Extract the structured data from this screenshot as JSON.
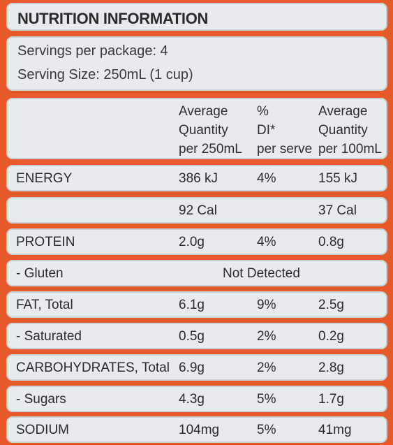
{
  "title": "NUTRITION INFORMATION",
  "servings": {
    "per_package": "Servings per package: 4",
    "serving_size": "Serving Size: 250mL (1 cup)"
  },
  "header": {
    "col1": [
      "Average",
      "Quantity",
      "per 250mL"
    ],
    "col2": [
      "%",
      "DI*",
      "per serve"
    ],
    "col3": [
      "Average",
      "Quantity",
      "per 100mL"
    ]
  },
  "rows": [
    {
      "label": "ENERGY",
      "per_serve": "386 kJ",
      "di": "4%",
      "per_100": "155 kJ"
    },
    {
      "label": "",
      "per_serve": "92 Cal",
      "di": "",
      "per_100": "37 Cal"
    },
    {
      "label": "PROTEIN",
      "per_serve": "2.0g",
      "di": "4%",
      "per_100": "0.8g"
    },
    {
      "label": "- Gluten",
      "span": "Not Detected"
    },
    {
      "label": "FAT, Total",
      "per_serve": "6.1g",
      "di": "9%",
      "per_100": "2.5g"
    },
    {
      "label": "- Saturated",
      "per_serve": "0.5g",
      "di": "2%",
      "per_100": "0.2g"
    },
    {
      "label": "CARBOHYDRATES, Total",
      "per_serve": "6.9g",
      "di": "2%",
      "per_100": "2.8g"
    },
    {
      "label": "- Sugars",
      "per_serve": "4.3g",
      "di": "5%",
      "per_100": "1.7g"
    },
    {
      "label": "SODIUM",
      "per_serve": "104mg",
      "di": "5%",
      "per_100": "41mg"
    }
  ],
  "colors": {
    "background": "#e8592a",
    "panel": "#e6ebee"
  }
}
